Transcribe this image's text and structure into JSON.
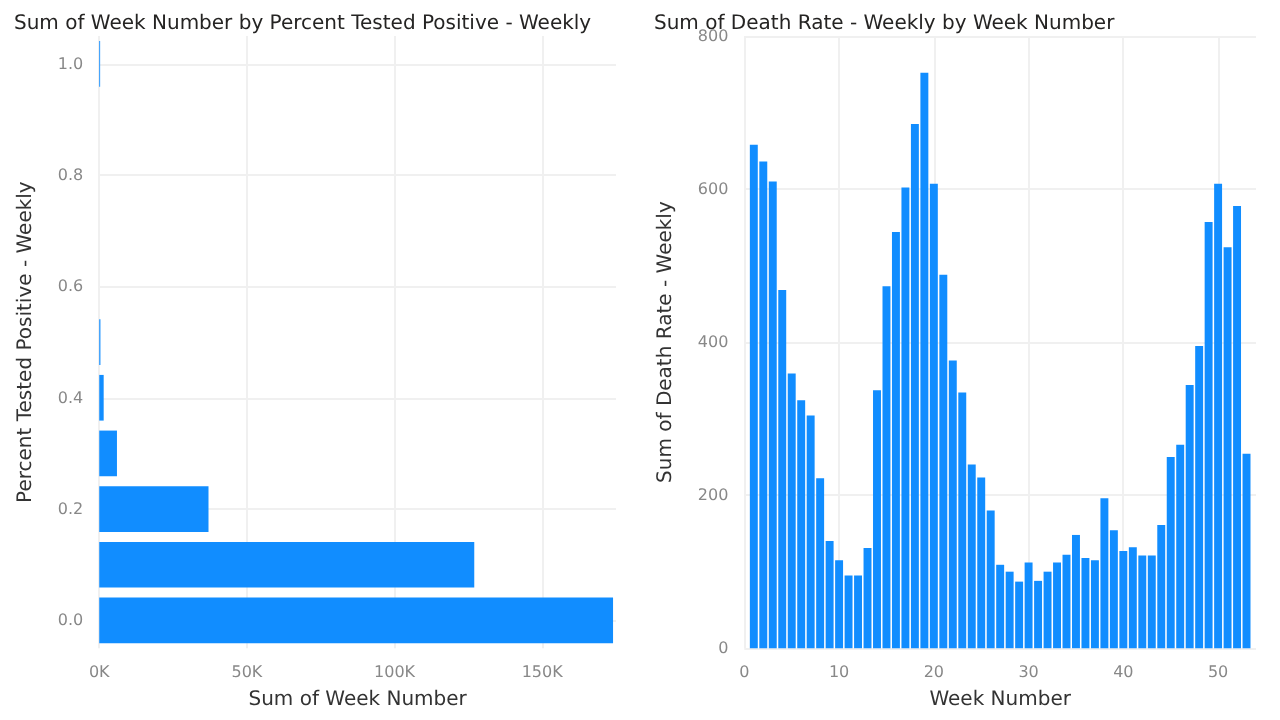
{
  "chart_data": [
    {
      "type": "bar",
      "orientation": "horizontal",
      "title": "Sum of Week Number by Percent Tested Positive - Weekly",
      "xlabel": "Sum of Week Number",
      "ylabel": "Percent Tested Positive - Weekly",
      "x": [
        0,
        0.1,
        0.2,
        0.3,
        0.4,
        0.5,
        1.0
      ],
      "values": [
        174000,
        127000,
        37000,
        6000,
        1500,
        400,
        300
      ],
      "color": "#118dff",
      "xlim": [
        0,
        175000
      ],
      "xticks": [
        {
          "value": 0,
          "label": "0K"
        },
        {
          "value": 50000,
          "label": "50K"
        },
        {
          "value": 100000,
          "label": "100K"
        },
        {
          "value": 150000,
          "label": "150K"
        }
      ],
      "ylim": [
        -0.05,
        1.05
      ],
      "yticks": [
        {
          "value": 0,
          "label": "0.0"
        },
        {
          "value": 0.2,
          "label": "0.2"
        },
        {
          "value": 0.4,
          "label": "0.4"
        },
        {
          "value": 0.6,
          "label": "0.6"
        },
        {
          "value": 0.8,
          "label": "0.8"
        },
        {
          "value": 1,
          "label": "1.0"
        }
      ],
      "grid": true
    },
    {
      "type": "bar",
      "title": "Sum of Death Rate - Weekly by Week Number",
      "xlabel": "Week Number",
      "ylabel": "Sum of Death Rate - Weekly",
      "x": [
        1,
        2,
        3,
        4,
        5,
        6,
        7,
        8,
        9,
        10,
        11,
        12,
        13,
        14,
        15,
        16,
        17,
        18,
        19,
        20,
        21,
        22,
        23,
        24,
        25,
        26,
        27,
        28,
        29,
        30,
        31,
        32,
        33,
        34,
        35,
        36,
        37,
        38,
        39,
        40,
        41,
        42,
        43,
        44,
        45,
        46,
        47,
        48,
        49,
        50,
        51,
        52,
        53
      ],
      "values": [
        658,
        636,
        610,
        468,
        359,
        324,
        304,
        222,
        140,
        115,
        95,
        95,
        131,
        337,
        473,
        544,
        602,
        685,
        752,
        607,
        488,
        376,
        334,
        240,
        223,
        180,
        109,
        100,
        87,
        112,
        88,
        100,
        112,
        122,
        148,
        118,
        115,
        196,
        154,
        127,
        132,
        121,
        121,
        161,
        250,
        266,
        344,
        395,
        557,
        607,
        524,
        578,
        254
      ],
      "color": "#118dff",
      "xlim": [
        0,
        54
      ],
      "xticks": [
        0,
        10,
        20,
        30,
        40,
        50
      ],
      "ylim": [
        0,
        800
      ],
      "yticks": [
        0,
        200,
        400,
        600,
        800
      ],
      "grid": true
    }
  ]
}
